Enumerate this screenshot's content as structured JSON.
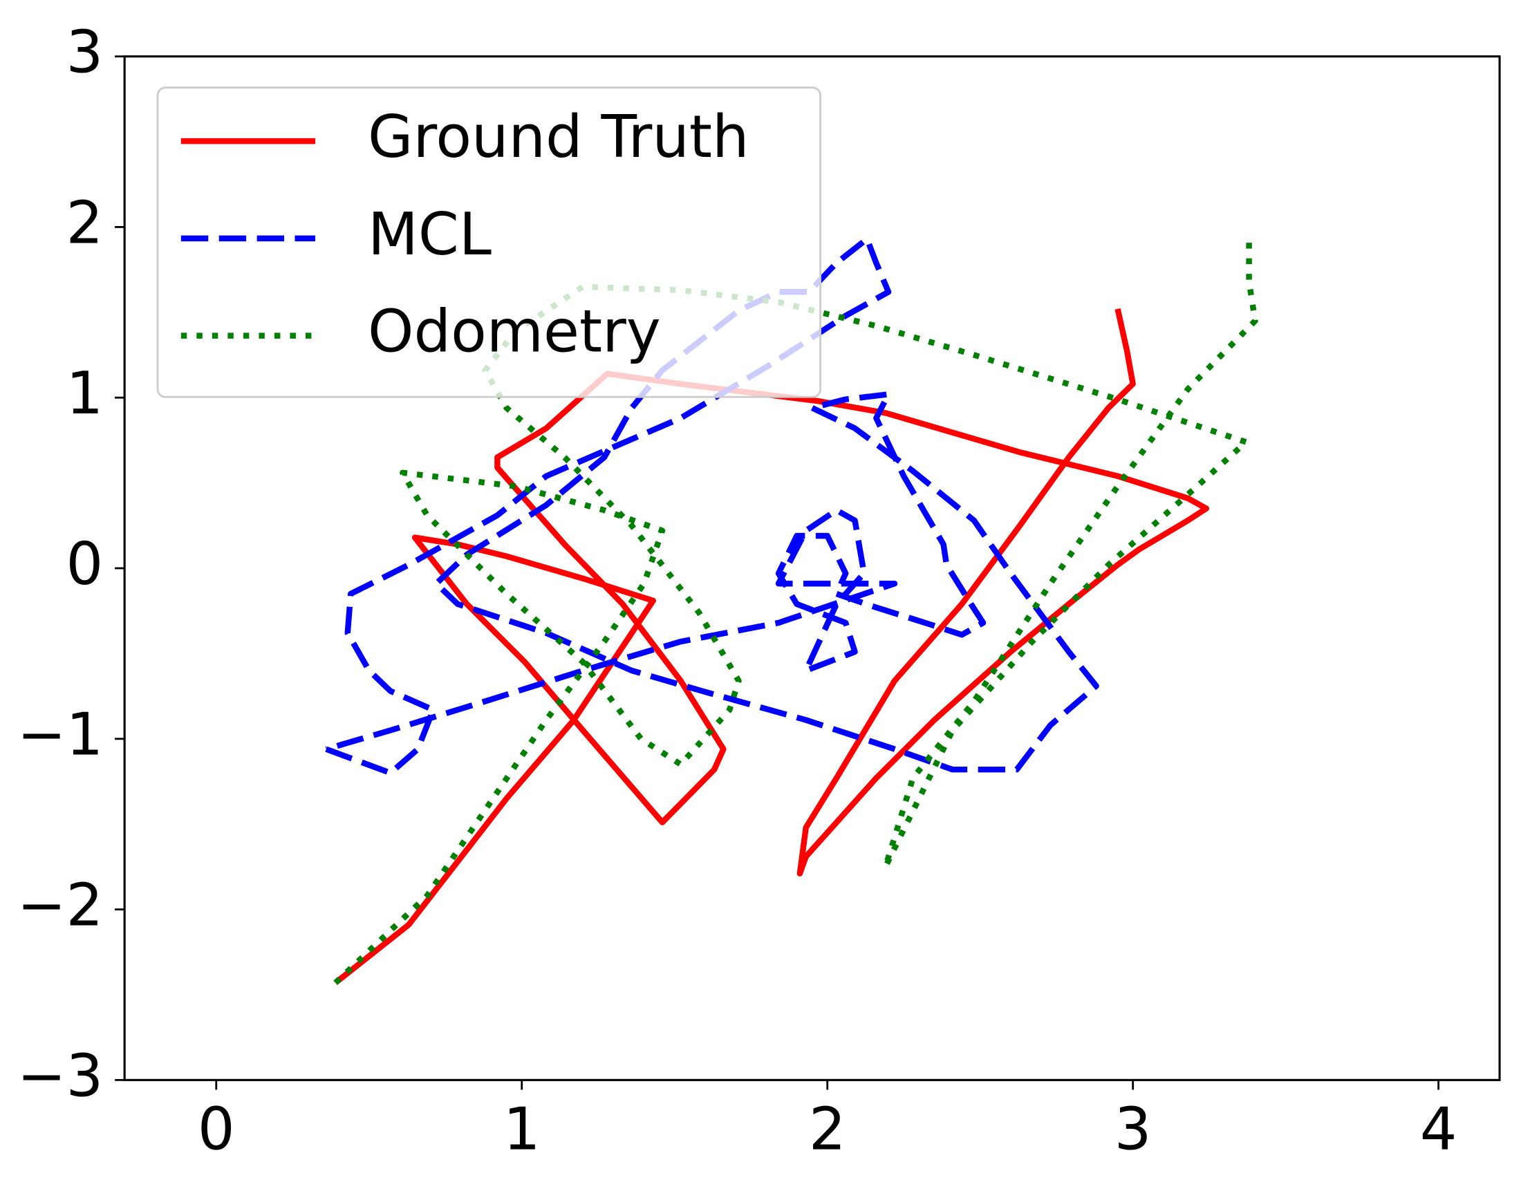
{
  "chart_data": {
    "type": "line",
    "xlim": [
      -0.3,
      4.2
    ],
    "ylim": [
      -3,
      3
    ],
    "xticks": [
      0,
      1,
      2,
      3,
      4
    ],
    "yticks": [
      {
        "value": -3,
        "label": "−3"
      },
      {
        "value": -2,
        "label": "−2"
      },
      {
        "value": -1,
        "label": "−1"
      },
      0,
      1,
      2,
      3
    ],
    "legend": "upper left",
    "series": [
      {
        "name": "Ground Truth",
        "color": "#ff0000",
        "style": "solid",
        "x": [
          0.39,
          0.63,
          0.95,
          1.17,
          1.36,
          1.43,
          1.2,
          0.95,
          0.79,
          0.65,
          0.82,
          1.01,
          1.2,
          1.46,
          1.63,
          1.66,
          1.52,
          1.33,
          1.14,
          0.92,
          0.92,
          1.08,
          1.28,
          1.52,
          1.97,
          2.19,
          2.63,
          2.95,
          3.18,
          3.24,
          3.18,
          3.02,
          2.95,
          2.79,
          2.6,
          2.35,
          2.16,
          1.93,
          1.91,
          1.93,
          2.03,
          2.22,
          2.44,
          2.63,
          2.79,
          2.92,
          3.0,
          2.98,
          2.95
        ],
        "y": [
          -2.43,
          -2.09,
          -1.35,
          -0.89,
          -0.38,
          -0.19,
          -0.06,
          0.07,
          0.14,
          0.18,
          -0.21,
          -0.55,
          -0.95,
          -1.49,
          -1.18,
          -1.06,
          -0.66,
          -0.21,
          0.14,
          0.59,
          0.65,
          0.82,
          1.14,
          1.08,
          0.98,
          0.91,
          0.68,
          0.54,
          0.41,
          0.35,
          0.28,
          0.11,
          0.02,
          -0.21,
          -0.49,
          -0.89,
          -1.23,
          -1.69,
          -1.79,
          -1.52,
          -1.23,
          -0.66,
          -0.21,
          0.25,
          0.65,
          0.94,
          1.08,
          1.28,
          1.52
        ]
      },
      {
        "name": "MCL",
        "color": "#0000ff",
        "style": "dashed",
        "x": [
          0.36,
          0.57,
          0.66,
          0.71,
          0.57,
          0.5,
          0.43,
          0.44,
          0.63,
          0.92,
          1.08,
          1.3,
          1.52,
          1.81,
          2.06,
          2.2,
          2.16,
          2.13,
          2.03,
          1.94,
          1.84,
          1.71,
          1.46,
          1.36,
          1.27,
          1.08,
          0.82,
          0.72,
          0.79,
          1.08,
          1.36,
          1.59,
          1.93,
          2.22,
          2.41,
          2.62,
          2.73,
          2.88,
          2.79,
          2.6,
          2.48,
          2.28,
          2.09,
          1.95,
          2.06,
          2.2,
          2.16,
          2.25,
          2.38,
          2.39,
          2.47,
          2.51,
          2.44,
          2.32,
          2.16,
          2.03,
          2.06,
          2.0,
          1.9,
          1.84,
          1.9,
          2.06,
          2.09,
          1.93,
          2.03,
          2.12,
          2.09,
          2.03,
          1.93,
          1.84,
          2.22,
          1.84,
          1.52,
          1.2,
          0.88,
          0.57,
          0.36
        ],
        "y": [
          -1.06,
          -1.2,
          -1.06,
          -0.83,
          -0.72,
          -0.6,
          -0.38,
          -0.15,
          0.02,
          0.31,
          0.54,
          0.71,
          0.88,
          1.19,
          1.48,
          1.62,
          1.79,
          1.93,
          1.79,
          1.62,
          1.62,
          1.51,
          1.16,
          0.94,
          0.65,
          0.37,
          0.08,
          -0.09,
          -0.21,
          -0.38,
          -0.6,
          -0.72,
          -0.89,
          -1.06,
          -1.18,
          -1.18,
          -0.92,
          -0.69,
          -0.49,
          -0.03,
          0.28,
          0.57,
          0.82,
          0.94,
          0.99,
          1.02,
          0.88,
          0.54,
          0.14,
          0.02,
          -0.21,
          -0.32,
          -0.39,
          -0.32,
          -0.23,
          -0.15,
          -0.03,
          0.19,
          0.19,
          -0.03,
          -0.21,
          -0.32,
          -0.49,
          -0.6,
          -0.21,
          -0.03,
          0.28,
          0.34,
          0.22,
          -0.09,
          -0.09,
          -0.32,
          -0.43,
          -0.6,
          -0.78,
          -0.95,
          -1.06
        ]
      },
      {
        "name": "Odometry",
        "color": "#008000",
        "style": "dotted",
        "x": [
          0.39,
          0.69,
          1.08,
          1.27,
          1.4,
          1.46,
          1.27,
          0.98,
          0.61,
          0.69,
          0.95,
          1.2,
          1.39,
          1.52,
          1.68,
          1.71,
          1.58,
          1.36,
          1.14,
          0.95,
          0.88,
          0.98,
          1.2,
          1.52,
          1.84,
          2.16,
          2.48,
          2.95,
          3.37,
          3.21,
          2.92,
          2.67,
          2.41,
          2.19,
          2.28,
          2.48,
          2.73,
          2.95,
          3.18,
          3.4,
          3.38,
          3.38
        ],
        "y": [
          -2.43,
          -1.92,
          -0.89,
          -0.43,
          -0.09,
          0.22,
          0.34,
          0.48,
          0.56,
          0.31,
          -0.15,
          -0.55,
          -1.0,
          -1.15,
          -0.83,
          -0.66,
          -0.26,
          0.25,
          0.65,
          0.94,
          1.16,
          1.39,
          1.65,
          1.63,
          1.56,
          1.42,
          1.25,
          0.99,
          0.74,
          0.48,
          0.02,
          -0.43,
          -0.95,
          -1.75,
          -1.23,
          -0.78,
          -0.09,
          0.48,
          1.05,
          1.45,
          1.68,
          1.91
        ]
      }
    ]
  }
}
